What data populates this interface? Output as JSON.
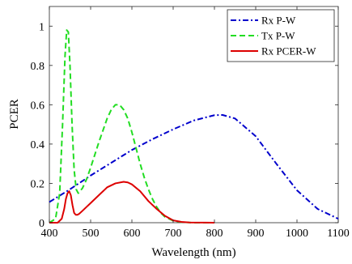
{
  "chart_data": {
    "type": "line",
    "xlabel": "Wavelength (nm)",
    "ylabel": "PCER",
    "xlim": [
      400,
      1100
    ],
    "ylim": [
      0,
      1.1
    ],
    "xticks": [
      400,
      500,
      600,
      700,
      800,
      900,
      1000,
      1100
    ],
    "yticks": [
      0,
      0.2,
      0.4,
      0.6,
      0.8,
      1
    ],
    "ytick_labels": [
      "0",
      "0.2",
      "0.4",
      "0.6",
      "0.8",
      "1"
    ],
    "grid": false,
    "legend_position": "top-right",
    "series": [
      {
        "name": "Rx P-W",
        "color": "#0000cc",
        "style": "dashdot",
        "x": [
          400,
          450,
          500,
          550,
          600,
          650,
          700,
          750,
          800,
          820,
          850,
          900,
          950,
          1000,
          1050,
          1100
        ],
        "y": [
          0.105,
          0.17,
          0.24,
          0.305,
          0.37,
          0.425,
          0.475,
          0.52,
          0.547,
          0.548,
          0.53,
          0.44,
          0.3,
          0.165,
          0.07,
          0.02
        ]
      },
      {
        "name": "Tx P-W",
        "color": "#22dd22",
        "style": "dashed",
        "x": [
          400,
          415,
          425,
          432,
          438,
          442,
          446,
          450,
          455,
          460,
          465,
          470,
          480,
          490,
          500,
          510,
          520,
          530,
          540,
          550,
          560,
          570,
          580,
          590,
          600,
          610,
          620,
          630,
          640,
          650,
          660,
          670,
          680,
          700,
          720,
          750,
          800
        ],
        "y": [
          0.0,
          0.02,
          0.15,
          0.5,
          0.85,
          0.98,
          0.97,
          0.8,
          0.5,
          0.27,
          0.17,
          0.15,
          0.175,
          0.22,
          0.28,
          0.345,
          0.41,
          0.47,
          0.53,
          0.575,
          0.6,
          0.6,
          0.575,
          0.53,
          0.46,
          0.38,
          0.3,
          0.23,
          0.17,
          0.12,
          0.08,
          0.05,
          0.03,
          0.01,
          0.003,
          0.0,
          0.0
        ]
      },
      {
        "name": "Rx PCER-W",
        "color": "#dd0000",
        "style": "solid",
        "x": [
          400,
          420,
          430,
          436,
          440,
          444,
          448,
          452,
          456,
          460,
          464,
          468,
          472,
          480,
          490,
          500,
          520,
          540,
          560,
          580,
          590,
          600,
          620,
          640,
          660,
          680,
          700,
          720,
          740,
          800
        ],
        "y": [
          0.0,
          0.0,
          0.02,
          0.07,
          0.12,
          0.15,
          0.16,
          0.14,
          0.09,
          0.05,
          0.04,
          0.04,
          0.045,
          0.06,
          0.08,
          0.1,
          0.14,
          0.18,
          0.2,
          0.208,
          0.205,
          0.195,
          0.16,
          0.11,
          0.07,
          0.035,
          0.012,
          0.004,
          0.001,
          0.0
        ]
      }
    ]
  }
}
